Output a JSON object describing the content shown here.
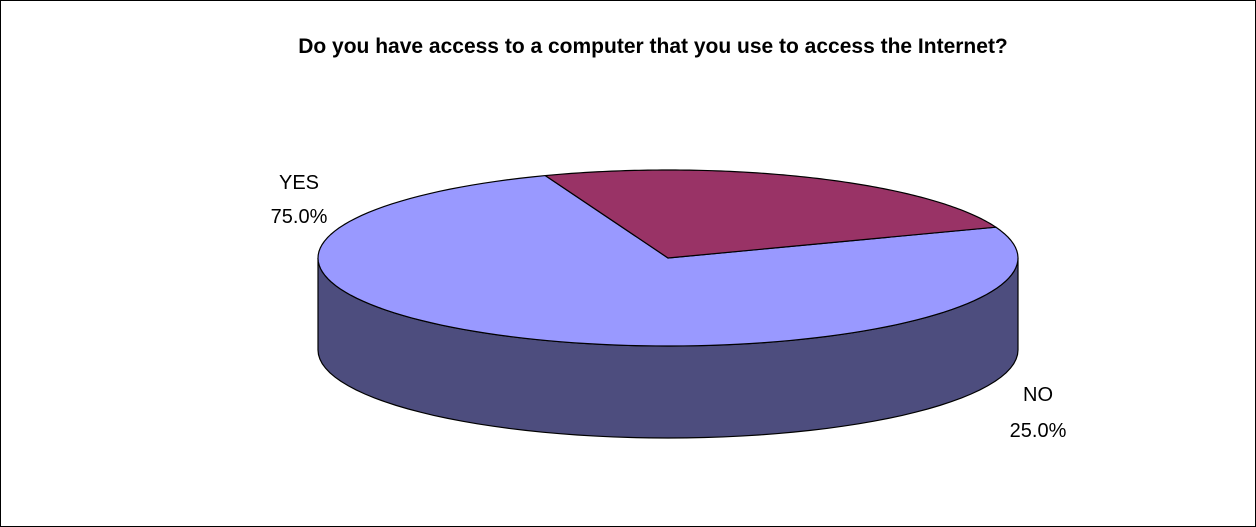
{
  "chart_data": {
    "type": "pie",
    "style": "3d",
    "title": "Do you have access to a computer that you use to access the Internet?",
    "slices": [
      {
        "label": "YES",
        "value": 75.0,
        "value_label": "75.0%",
        "color": "#9999FF",
        "side_color": "#4D4D7E"
      },
      {
        "label": "NO",
        "value": 25.0,
        "value_label": "25.0%",
        "color": "#993366",
        "side_color": "#4F1A34"
      }
    ],
    "legend": "none"
  }
}
